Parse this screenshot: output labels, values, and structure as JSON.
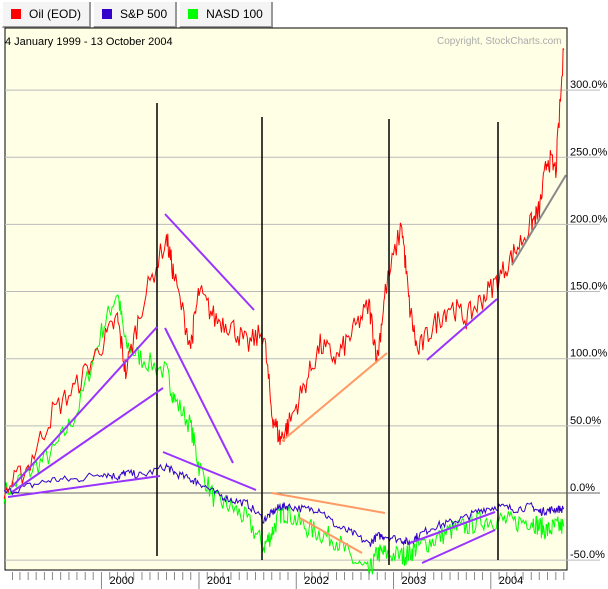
{
  "legend_tabs": [
    {
      "label": "Oil (EOD)",
      "color": "#ff0000"
    },
    {
      "label": "S&P 500",
      "color": "#3300cc"
    },
    {
      "label": "NASD 100",
      "color": "#00ff00"
    }
  ],
  "date_range": "4 January 1999 - 13 October 2004",
  "copyright": "Copyright, StockCharts.com",
  "chart_data": {
    "type": "line",
    "title": "",
    "xlabel": "",
    "ylabel": "",
    "x_tick_labels": [
      "2000",
      "2001",
      "2002",
      "2003",
      "2004"
    ],
    "y_tick_labels": [
      "300.0%",
      "250.0%",
      "200.0%",
      "150.0%",
      "100.0%",
      "50.0%",
      "0.0%",
      "-50.0%"
    ],
    "ylim": [
      -55,
      335
    ],
    "grid": true,
    "legend_placement": "top-left tabs",
    "x": [
      "1999-01",
      "1999-04",
      "1999-07",
      "1999-10",
      "2000-01",
      "2000-03",
      "2000-04",
      "2000-06",
      "2000-09",
      "2000-10",
      "2000-12",
      "2001-01",
      "2001-03",
      "2001-05",
      "2001-07",
      "2001-09",
      "2001-10",
      "2001-11",
      "2001-12",
      "2002-02",
      "2002-04",
      "2002-06",
      "2002-08",
      "2002-10",
      "2002-11",
      "2002-12",
      "2003-02",
      "2003-03",
      "2003-04",
      "2003-06",
      "2003-08",
      "2003-10",
      "2003-12",
      "2004-02",
      "2004-04",
      "2004-06",
      "2004-07",
      "2004-08",
      "2004-09",
      "2004-10"
    ],
    "series": [
      {
        "name": "Oil (EOD)",
        "color": "#ff0000",
        "values": [
          0,
          20,
          60,
          80,
          110,
          130,
          90,
          140,
          190,
          160,
          110,
          150,
          130,
          125,
          110,
          120,
          60,
          40,
          50,
          80,
          110,
          100,
          120,
          140,
          100,
          150,
          200,
          140,
          105,
          125,
          140,
          130,
          145,
          160,
          180,
          200,
          210,
          250,
          240,
          330
        ]
      },
      {
        "name": "S&P 500",
        "color": "#3300cc",
        "values": [
          0,
          5,
          10,
          10,
          15,
          12,
          15,
          13,
          20,
          15,
          10,
          8,
          0,
          -5,
          -8,
          -20,
          -15,
          -10,
          -10,
          -12,
          -12,
          -25,
          -30,
          -38,
          -32,
          -32,
          -35,
          -37,
          -32,
          -25,
          -22,
          -18,
          -12,
          -10,
          -12,
          -10,
          -14,
          -13,
          -12,
          -12
        ]
      },
      {
        "name": "NASD 100",
        "color": "#00ff00",
        "values": [
          0,
          15,
          30,
          60,
          120,
          150,
          110,
          100,
          90,
          70,
          50,
          20,
          -5,
          -10,
          -20,
          -40,
          -30,
          -15,
          -15,
          -25,
          -30,
          -35,
          -50,
          -60,
          -45,
          -45,
          -47,
          -45,
          -40,
          -35,
          -28,
          -25,
          -20,
          -20,
          -22,
          -20,
          -25,
          -28,
          -25,
          -25
        ]
      }
    ]
  }
}
